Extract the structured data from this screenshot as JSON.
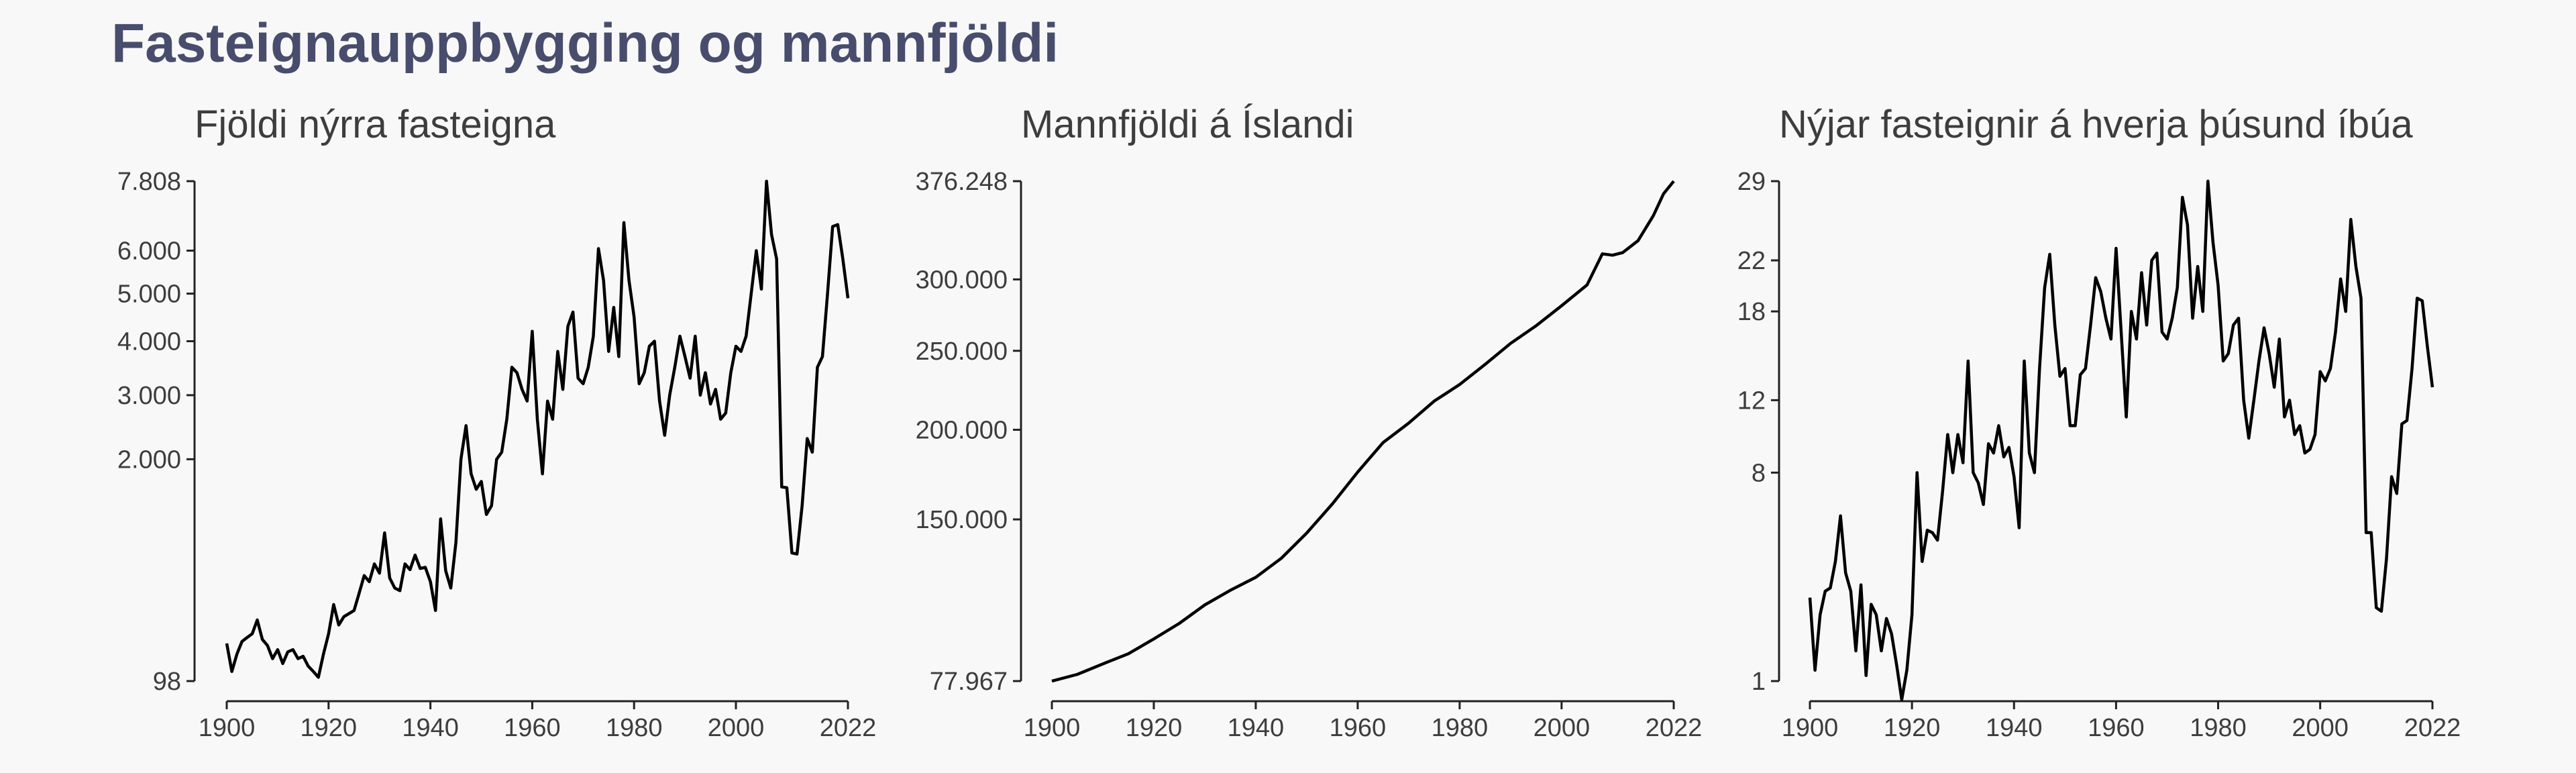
{
  "title": "Fasteignauppbygging og mannfjöldi",
  "chart_data": [
    {
      "type": "line",
      "title": "Fjöldi nýrra fasteigna",
      "xlabel": "",
      "ylabel": "",
      "scale": "sqrt",
      "xlim": [
        1900,
        2022
      ],
      "ylim": [
        98,
        7808
      ],
      "x_ticks": [
        1900,
        1920,
        1940,
        1960,
        1980,
        2000,
        2022
      ],
      "x_tick_labels": [
        "1900",
        "1920",
        "1940",
        "1960",
        "1980",
        "2000",
        "2022"
      ],
      "y_ticks": [
        98,
        2000,
        3000,
        4000,
        5000,
        6000,
        7808
      ],
      "y_tick_labels": [
        "98",
        "2.000",
        "3.000",
        "4.000",
        "5.000",
        "6.000",
        "7.808"
      ],
      "grid": false,
      "series": [
        {
          "x": [
            1900,
            1901,
            1902,
            1903,
            1904,
            1905,
            1906,
            1907,
            1908,
            1909,
            1910,
            1911,
            1912,
            1913,
            1914,
            1915,
            1916,
            1917,
            1918,
            1919,
            1920,
            1921,
            1922,
            1923,
            1924,
            1925,
            1926,
            1927,
            1928,
            1929,
            1930,
            1931,
            1932,
            1933,
            1934,
            1935,
            1936,
            1937,
            1938,
            1939,
            1940,
            1941,
            1942,
            1943,
            1944,
            1945,
            1946,
            1947,
            1948,
            1949,
            1950,
            1951,
            1952,
            1953,
            1954,
            1955,
            1956,
            1957,
            1958,
            1959,
            1960,
            1961,
            1962,
            1963,
            1964,
            1965,
            1966,
            1967,
            1968,
            1969,
            1970,
            1971,
            1972,
            1973,
            1974,
            1975,
            1976,
            1977,
            1978,
            1979,
            1980,
            1981,
            1982,
            1983,
            1984,
            1985,
            1986,
            1987,
            1988,
            1989,
            1990,
            1991,
            1992,
            1993,
            1994,
            1995,
            1996,
            1997,
            1998,
            1999,
            2000,
            2001,
            2002,
            2003,
            2004,
            2005,
            2006,
            2007,
            2008,
            2009,
            2010,
            2011,
            2012,
            2013,
            2014,
            2015,
            2016,
            2017,
            2018,
            2019,
            2020,
            2021,
            2022
          ],
          "values": [
            250,
            130,
            200,
            260,
            280,
            300,
            380,
            270,
            240,
            180,
            220,
            160,
            210,
            220,
            180,
            190,
            150,
            130,
            110,
            200,
            300,
            480,
            350,
            400,
            420,
            440,
            560,
            700,
            650,
            800,
            720,
            1100,
            680,
            600,
            580,
            800,
            750,
            880,
            760,
            770,
            650,
            440,
            1250,
            740,
            600,
            1000,
            2000,
            2500,
            1800,
            1600,
            1700,
            1300,
            1400,
            2000,
            2100,
            2600,
            3500,
            3400,
            3100,
            2900,
            4200,
            2600,
            1800,
            2900,
            2600,
            3800,
            3100,
            4300,
            4600,
            3300,
            3200,
            3500,
            4100,
            6050,
            5300,
            3800,
            4700,
            3700,
            6700,
            5300,
            4500,
            3200,
            3400,
            3900,
            4000,
            2900,
            2350,
            3000,
            3500,
            4100,
            3700,
            3300,
            4100,
            3000,
            3400,
            2850,
            3100,
            2600,
            2700,
            3400,
            3900,
            3800,
            4100,
            5000,
            6000,
            5100,
            7808,
            6400,
            5800,
            1630,
            1620,
            900,
            890,
            1400,
            2300,
            2100,
            3500,
            3700,
            5000,
            6600,
            6650,
            5800,
            4900
          ]
        }
      ]
    },
    {
      "type": "line",
      "title": "Mannfjöldi á Íslandi",
      "xlabel": "",
      "ylabel": "",
      "scale": "sqrt",
      "xlim": [
        1900,
        2022
      ],
      "ylim": [
        77967,
        376248
      ],
      "x_ticks": [
        1900,
        1920,
        1940,
        1960,
        1980,
        2000,
        2022
      ],
      "x_tick_labels": [
        "1900",
        "1920",
        "1940",
        "1960",
        "1980",
        "2000",
        "2022"
      ],
      "y_ticks": [
        77967,
        150000,
        200000,
        250000,
        300000,
        376248
      ],
      "y_tick_labels": [
        "77.967",
        "150.000",
        "200.000",
        "250.000",
        "300.000",
        "376.248"
      ],
      "grid": false,
      "series": [
        {
          "x": [
            1900,
            1905,
            1910,
            1915,
            1920,
            1925,
            1930,
            1935,
            1940,
            1945,
            1950,
            1955,
            1960,
            1965,
            1970,
            1975,
            1980,
            1985,
            1990,
            1995,
            2000,
            2005,
            2008,
            2010,
            2012,
            2015,
            2018,
            2020,
            2022
          ],
          "values": [
            77967,
            80500,
            84500,
            88500,
            94500,
            101000,
            109000,
            115500,
            121500,
            130500,
            143000,
            158000,
            175500,
            192500,
            204000,
            217500,
            228000,
            241000,
            255000,
            267000,
            281000,
            296000,
            319000,
            318000,
            320000,
            329000,
            348500,
            366000,
            376248
          ]
        }
      ]
    },
    {
      "type": "line",
      "title": "Nýjar fasteignir á hverja þúsund íbúa",
      "xlabel": "",
      "ylabel": "",
      "scale": "sqrt",
      "xlim": [
        1900,
        2022
      ],
      "ylim": [
        1,
        29
      ],
      "x_ticks": [
        1900,
        1920,
        1940,
        1960,
        1980,
        2000,
        2022
      ],
      "x_tick_labels": [
        "1900",
        "1920",
        "1940",
        "1960",
        "1980",
        "2000",
        "2022"
      ],
      "y_ticks": [
        1,
        8,
        12,
        18,
        22,
        29
      ],
      "y_tick_labels": [
        "1",
        "8",
        "12",
        "18",
        "22",
        "29"
      ],
      "grid": false,
      "series": [
        {
          "x": [
            1900,
            1901,
            1902,
            1903,
            1904,
            1905,
            1906,
            1907,
            1908,
            1909,
            1910,
            1911,
            1912,
            1913,
            1914,
            1915,
            1916,
            1917,
            1918,
            1919,
            1920,
            1921,
            1922,
            1923,
            1924,
            1925,
            1926,
            1927,
            1928,
            1929,
            1930,
            1931,
            1932,
            1933,
            1934,
            1935,
            1936,
            1937,
            1938,
            1939,
            1940,
            1941,
            1942,
            1943,
            1944,
            1945,
            1946,
            1947,
            1948,
            1949,
            1950,
            1951,
            1952,
            1953,
            1954,
            1955,
            1956,
            1957,
            1958,
            1959,
            1960,
            1961,
            1962,
            1963,
            1964,
            1965,
            1966,
            1967,
            1968,
            1969,
            1970,
            1971,
            1972,
            1973,
            1974,
            1975,
            1976,
            1977,
            1978,
            1979,
            1980,
            1981,
            1982,
            1983,
            1984,
            1985,
            1986,
            1987,
            1988,
            1989,
            1990,
            1991,
            1992,
            1993,
            1994,
            1995,
            1996,
            1997,
            1998,
            1999,
            2000,
            2001,
            2002,
            2003,
            2004,
            2005,
            2006,
            2007,
            2008,
            2009,
            2010,
            2011,
            2012,
            2013,
            2014,
            2015,
            2016,
            2017,
            2018,
            2019,
            2020,
            2021,
            2022
          ],
          "values": [
            3,
            1.2,
            2.5,
            3.2,
            3.3,
            4.2,
            6,
            3.8,
            3.2,
            1.6,
            3.4,
            1.1,
            2.8,
            2.5,
            1.6,
            2.4,
            2,
            1.3,
            0.7,
            1.2,
            2.5,
            8,
            4.2,
            5.4,
            5.3,
            5,
            7.1,
            10,
            8,
            10,
            8.5,
            14.5,
            8,
            7.5,
            6.5,
            9.5,
            9,
            10.5,
            8.8,
            9.3,
            7.8,
            5.5,
            14.5,
            9,
            8,
            14,
            19.8,
            22.5,
            17,
            13.5,
            14,
            10.5,
            10.5,
            13.6,
            14,
            17,
            20.6,
            19.5,
            17.5,
            16,
            23,
            16.5,
            11,
            18,
            16,
            21,
            17,
            22,
            22.6,
            16.5,
            16,
            17.5,
            19.8,
            27.5,
            25,
            17.5,
            21.5,
            18,
            29,
            23.5,
            20,
            14.5,
            15,
            17,
            17.5,
            12,
            9.8,
            12,
            14.5,
            16.8,
            15,
            12.8,
            16,
            11,
            12,
            10,
            10.5,
            9,
            9.2,
            10,
            13.8,
            13.2,
            14,
            16.5,
            20.5,
            18,
            25.5,
            21.5,
            19,
            5.3,
            5.3,
            2.7,
            2.6,
            4.3,
            7.8,
            7,
            10.6,
            10.8,
            14,
            19,
            18.8,
            15.5,
            12.8
          ]
        }
      ]
    }
  ]
}
